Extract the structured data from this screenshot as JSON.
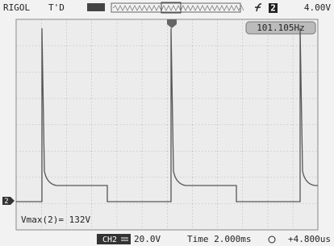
{
  "header": {
    "brand": "RIGOL",
    "status": "T'D",
    "trigger_source": "2",
    "trigger_level": "4.00V"
  },
  "screen": {
    "channel_marker": "2",
    "frequency": "101.105Hz",
    "measurement": "Vmax(2)= 132V"
  },
  "footer": {
    "channel": "CH2",
    "volts_per_div": "20.0V",
    "timebase": "Time 2.000ms",
    "trigger_offset": "+4.800us"
  }
}
